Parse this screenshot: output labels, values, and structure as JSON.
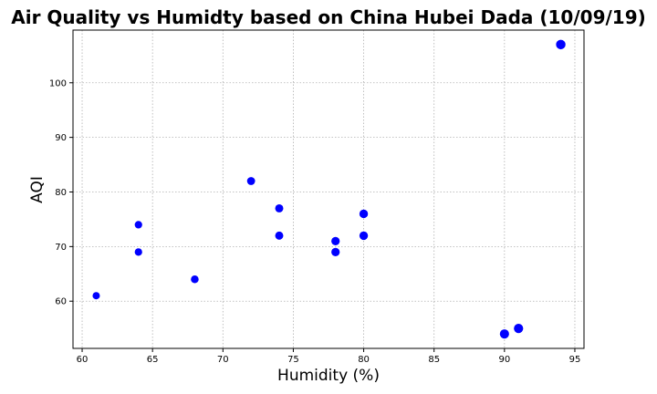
{
  "chart_data": {
    "type": "scatter",
    "title": "Air Quality vs Humidty based on China Hubei Dada (10/09/19)",
    "xlabel": "Humidity (%)",
    "ylabel": "AQI",
    "xlim": [
      59.35,
      95.65
    ],
    "ylim": [
      51.35,
      109.65
    ],
    "xticks": [
      60,
      65,
      70,
      75,
      80,
      85,
      90,
      95
    ],
    "yticks": [
      60,
      70,
      80,
      90,
      100
    ],
    "grid": true,
    "marker_color": "#0000ff",
    "points": [
      {
        "x": 61,
        "y": 61
      },
      {
        "x": 64,
        "y": 74
      },
      {
        "x": 64,
        "y": 69
      },
      {
        "x": 68,
        "y": 64
      },
      {
        "x": 72,
        "y": 82
      },
      {
        "x": 74,
        "y": 77
      },
      {
        "x": 74,
        "y": 72
      },
      {
        "x": 78,
        "y": 71
      },
      {
        "x": 78,
        "y": 69
      },
      {
        "x": 80,
        "y": 76
      },
      {
        "x": 80,
        "y": 72
      },
      {
        "x": 90,
        "y": 54
      },
      {
        "x": 91,
        "y": 55
      },
      {
        "x": 94,
        "y": 107
      }
    ]
  }
}
